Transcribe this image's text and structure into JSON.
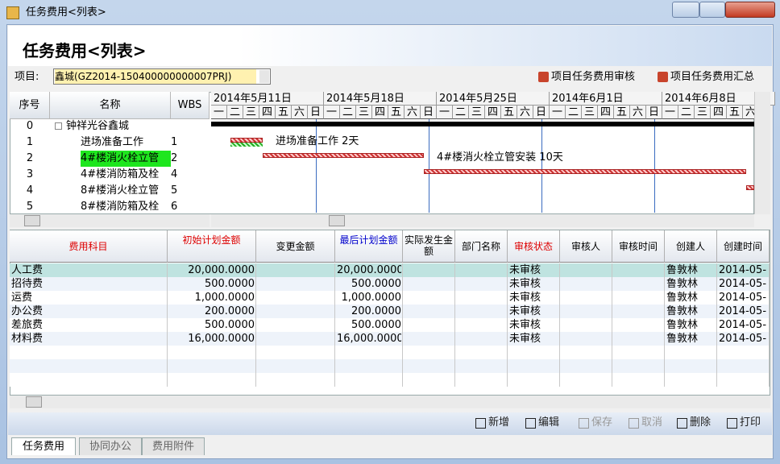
{
  "window": {
    "title": "任务费用<列表>"
  },
  "header": {
    "title": "任务费用<列表>"
  },
  "project": {
    "label": "项目:",
    "value": "鑫城(GZ2014-150400000000007PRJ)",
    "buttons": [
      "项目任务费用审核",
      "项目任务费用汇总"
    ]
  },
  "gantt": {
    "columns": [
      "序号",
      "名称",
      "WBS"
    ],
    "rows": [
      [
        "0",
        "钟祥光谷鑫城",
        null
      ],
      [
        "1",
        "进场准备工作",
        "1"
      ],
      [
        "2",
        "4#楼消火栓立管",
        "2"
      ],
      [
        "3",
        "4#楼消防箱及栓",
        "4"
      ],
      [
        "4",
        "8#楼消火栓立管",
        "5"
      ],
      [
        "5",
        "8#楼消防箱及栓",
        "6"
      ]
    ],
    "weeks": [
      "2014年5月11日",
      "2014年5月18日",
      "2014年5月25日",
      "2014年6月1日",
      "2014年6月8日"
    ],
    "weekdays": [
      "一",
      "二",
      "三",
      "四",
      "五",
      "六",
      "日"
    ],
    "bar_labels": [
      "进场准备工作 2天",
      "4#楼消火栓立管安装 10天"
    ]
  },
  "table": {
    "columns": [
      "费用科目",
      "初始计划金额",
      "变更金额",
      "最后计划金额",
      "实际发生金额",
      "部门名称",
      "审核状态",
      "审核人",
      "审核时间",
      "创建人",
      "创建时间"
    ],
    "rows": [
      [
        "人工费",
        "20,000.0000",
        null,
        "20,000.0000",
        null,
        null,
        "未审核",
        null,
        null,
        "鲁敦林",
        "2014-05-"
      ],
      [
        "招待费",
        "500.0000",
        null,
        "500.0000",
        null,
        null,
        "未审核",
        null,
        null,
        "鲁敦林",
        "2014-05-"
      ],
      [
        "运费",
        "1,000.0000",
        null,
        "1,000.0000",
        null,
        null,
        "未审核",
        null,
        null,
        "鲁敦林",
        "2014-05-"
      ],
      [
        "办公费",
        "200.0000",
        null,
        "200.0000",
        null,
        null,
        "未审核",
        null,
        null,
        "鲁敦林",
        "2014-05-"
      ],
      [
        "差旅费",
        "500.0000",
        null,
        "500.0000",
        null,
        null,
        "未审核",
        null,
        null,
        "鲁敦林",
        "2014-05-"
      ],
      [
        "材料费",
        "16,000.0000",
        null,
        "16,000.0000",
        null,
        null,
        "未审核",
        null,
        null,
        "鲁敦林",
        "2014-05-"
      ]
    ]
  },
  "toolbar": {
    "buttons": [
      "新增",
      "编辑",
      "保存",
      "取消",
      "删除",
      "打印"
    ]
  },
  "tabs": [
    "任务费用",
    "协同办公",
    "费用附件"
  ]
}
